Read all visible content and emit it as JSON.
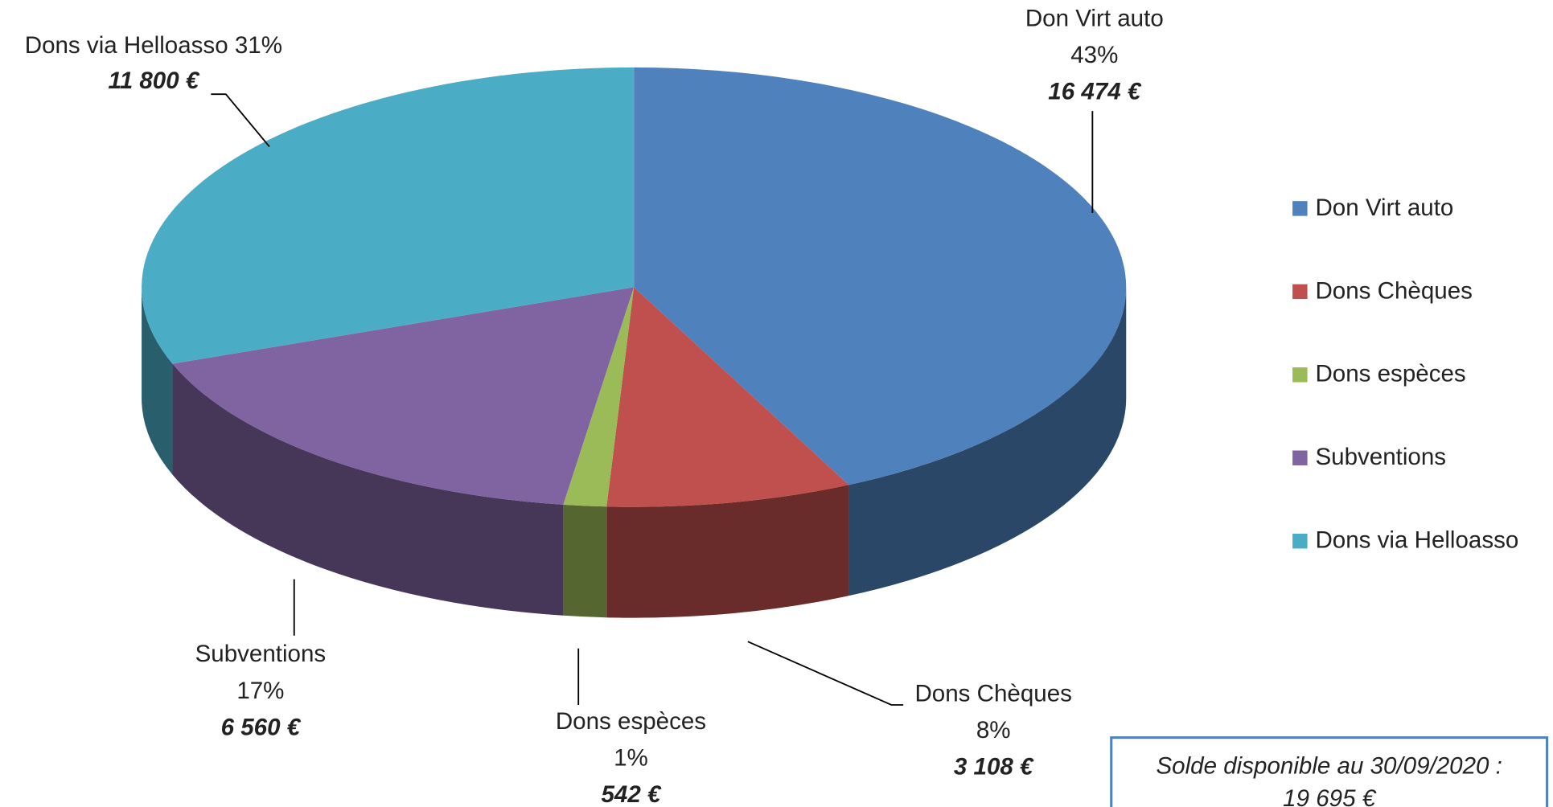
{
  "chart_data": {
    "type": "pie3d",
    "categories": [
      "Don Virt auto",
      "Dons Chèques",
      "Dons espèces",
      "Subventions",
      "Dons via Helloasso"
    ],
    "values": [
      16474,
      3108,
      542,
      6560,
      11800
    ],
    "value_labels": [
      "16 474 €",
      "3 108 €",
      "542 €",
      "6 560 €",
      "11 800 €"
    ],
    "percent_labels": [
      "43%",
      "8%",
      "1%",
      "17%",
      "31%"
    ],
    "colors": [
      "#4f81bd",
      "#c0504d",
      "#9bbb59",
      "#8064a2",
      "#4bacc6"
    ],
    "legend": "right",
    "annotation": [
      "Solde disponible au 30/09/2020 :",
      "19 695 €"
    ]
  }
}
